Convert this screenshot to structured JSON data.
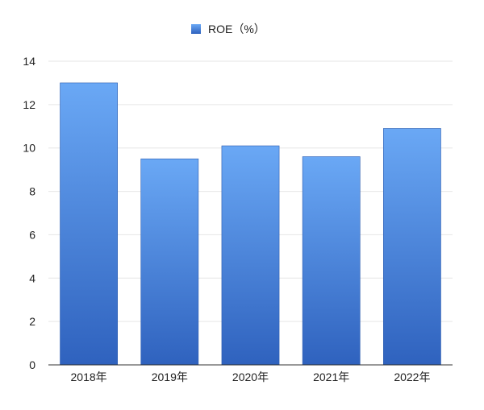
{
  "chart_data": {
    "type": "bar",
    "categories": [
      "2018年",
      "2019年",
      "2020年",
      "2021年",
      "2022年"
    ],
    "series": [
      {
        "name": "ROE（%）",
        "values": [
          13.0,
          9.5,
          10.1,
          9.6,
          10.9
        ]
      }
    ],
    "title": "",
    "xlabel": "",
    "ylabel": "",
    "ylim": [
      0,
      14
    ],
    "yticks": [
      0,
      2,
      4,
      6,
      8,
      10,
      12,
      14
    ],
    "grid": true,
    "legend_position": "top-center",
    "colors": {
      "bar_top": "#6aa8f5",
      "bar_bottom": "#2f62be",
      "grid": "#e6e6e6",
      "axis": "#333333"
    }
  }
}
